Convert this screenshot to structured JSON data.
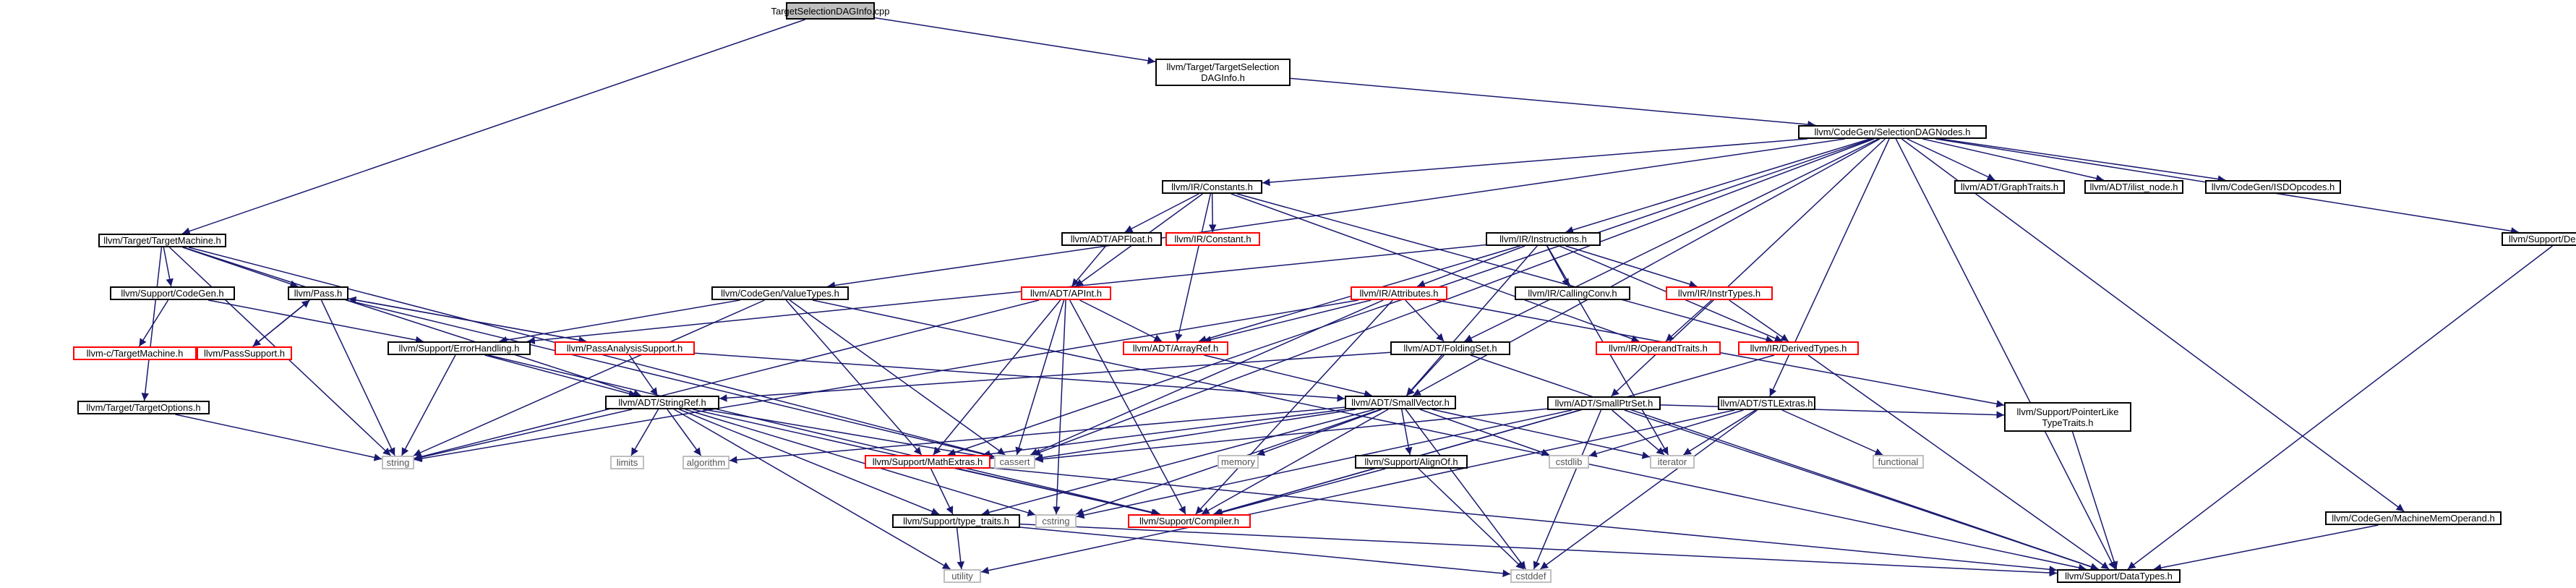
{
  "nodes": [
    {
      "id": "root",
      "label": "TargetSelectionDAGInfo.cpp",
      "style": "root"
    },
    {
      "id": "tsdi",
      "label": "llvm/Target/TargetSelection\nDAGInfo.h",
      "style": "black"
    },
    {
      "id": "sdn",
      "label": "llvm/CodeGen/SelectionDAGNodes.h",
      "style": "black"
    },
    {
      "id": "tm",
      "label": "llvm/Target/TargetMachine.h",
      "style": "black"
    },
    {
      "id": "constants",
      "label": "llvm/IR/Constants.h",
      "style": "black"
    },
    {
      "id": "graphtraits",
      "label": "llvm/ADT/GraphTraits.h",
      "style": "black"
    },
    {
      "id": "ilist",
      "label": "llvm/ADT/ilist_node.h",
      "style": "black"
    },
    {
      "id": "isdop",
      "label": "llvm/CodeGen/ISDOpcodes.h",
      "style": "black"
    },
    {
      "id": "debugloc",
      "label": "llvm/Support/DebugLoc.h",
      "style": "black"
    },
    {
      "id": "apfloat",
      "label": "llvm/ADT/APFloat.h",
      "style": "black"
    },
    {
      "id": "constant",
      "label": "llvm/IR/Constant.h",
      "style": "red"
    },
    {
      "id": "instructions",
      "label": "llvm/IR/Instructions.h",
      "style": "black"
    },
    {
      "id": "pass",
      "label": "llvm/Pass.h",
      "style": "black"
    },
    {
      "id": "valuetypes",
      "label": "llvm/CodeGen/ValueTypes.h",
      "style": "black"
    },
    {
      "id": "apint",
      "label": "llvm/ADT/APInt.h",
      "style": "red"
    },
    {
      "id": "attributes",
      "label": "llvm/IR/Attributes.h",
      "style": "red"
    },
    {
      "id": "callingconv",
      "label": "llvm/IR/CallingConv.h",
      "style": "black"
    },
    {
      "id": "instrtypes",
      "label": "llvm/IR/InstrTypes.h",
      "style": "red"
    },
    {
      "id": "supportcodegen",
      "label": "llvm/Support/CodeGen.h",
      "style": "black"
    },
    {
      "id": "passsupport",
      "label": "llvm/PassSupport.h",
      "style": "red"
    },
    {
      "id": "errorhandling",
      "label": "llvm/Support/ErrorHandling.h",
      "style": "black"
    },
    {
      "id": "passanalysis",
      "label": "llvm/PassAnalysisSupport.h",
      "style": "red"
    },
    {
      "id": "arrayref",
      "label": "llvm/ADT/ArrayRef.h",
      "style": "red"
    },
    {
      "id": "foldingset",
      "label": "llvm/ADT/FoldingSet.h",
      "style": "black"
    },
    {
      "id": "operandtraits",
      "label": "llvm/IR/OperandTraits.h",
      "style": "red"
    },
    {
      "id": "derivedtypes",
      "label": "llvm/IR/DerivedTypes.h",
      "style": "red"
    },
    {
      "id": "ctm",
      "label": "llvm-c/TargetMachine.h",
      "style": "red"
    },
    {
      "id": "targetoptions",
      "label": "llvm/Target/TargetOptions.h",
      "style": "black"
    },
    {
      "id": "stringref",
      "label": "llvm/ADT/StringRef.h",
      "style": "black"
    },
    {
      "id": "smallvector",
      "label": "llvm/ADT/SmallVector.h",
      "style": "black"
    },
    {
      "id": "smallptrset",
      "label": "llvm/ADT/SmallPtrSet.h",
      "style": "black"
    },
    {
      "id": "stlextras",
      "label": "llvm/ADT/STLExtras.h",
      "style": "black"
    },
    {
      "id": "pointerlike",
      "label": "llvm/Support/PointerLike\nTypeTraits.h",
      "style": "black"
    },
    {
      "id": "string",
      "label": "string",
      "style": "gray"
    },
    {
      "id": "limits",
      "label": "limits",
      "style": "gray"
    },
    {
      "id": "algorithm",
      "label": "algorithm",
      "style": "gray"
    },
    {
      "id": "cassert",
      "label": "cassert",
      "style": "gray"
    },
    {
      "id": "mathextras",
      "label": "llvm/Support/MathExtras.h",
      "style": "red"
    },
    {
      "id": "memory",
      "label": "memory",
      "style": "gray"
    },
    {
      "id": "alignof",
      "label": "llvm/Support/AlignOf.h",
      "style": "black"
    },
    {
      "id": "cstdlib",
      "label": "cstdlib",
      "style": "gray"
    },
    {
      "id": "iterator",
      "label": "iterator",
      "style": "gray"
    },
    {
      "id": "functional",
      "label": "functional",
      "style": "gray"
    },
    {
      "id": "typetraits",
      "label": "llvm/Support/type_traits.h",
      "style": "black"
    },
    {
      "id": "cstring",
      "label": "cstring",
      "style": "gray"
    },
    {
      "id": "compiler",
      "label": "llvm/Support/Compiler.h",
      "style": "red"
    },
    {
      "id": "machinememoperand",
      "label": "llvm/CodeGen/MachineMemOperand.h",
      "style": "black"
    },
    {
      "id": "utility",
      "label": "utility",
      "style": "gray"
    },
    {
      "id": "cstddef",
      "label": "cstddef",
      "style": "gray"
    },
    {
      "id": "datatypes",
      "label": "llvm/Support/DataTypes.h",
      "style": "black"
    }
  ],
  "edges": [
    [
      "root",
      "tsdi"
    ],
    [
      "root",
      "tm"
    ],
    [
      "tsdi",
      "sdn"
    ],
    [
      "sdn",
      "constants"
    ],
    [
      "sdn",
      "graphtraits"
    ],
    [
      "sdn",
      "ilist"
    ],
    [
      "sdn",
      "isdop"
    ],
    [
      "sdn",
      "debugloc"
    ],
    [
      "sdn",
      "valuetypes"
    ],
    [
      "sdn",
      "instructions"
    ],
    [
      "sdn",
      "foldingset"
    ],
    [
      "sdn",
      "smallvector"
    ],
    [
      "sdn",
      "smallptrset"
    ],
    [
      "sdn",
      "stlextras"
    ],
    [
      "sdn",
      "machinememoperand"
    ],
    [
      "sdn",
      "datatypes"
    ],
    [
      "sdn",
      "mathextras"
    ],
    [
      "sdn",
      "cassert"
    ],
    [
      "tm",
      "pass"
    ],
    [
      "tm",
      "supportcodegen"
    ],
    [
      "tm",
      "targetoptions"
    ],
    [
      "tm",
      "stringref"
    ],
    [
      "tm",
      "string"
    ],
    [
      "tm",
      "cassert"
    ],
    [
      "constants",
      "apfloat"
    ],
    [
      "constants",
      "constant"
    ],
    [
      "constants",
      "apint"
    ],
    [
      "constants",
      "arrayref"
    ],
    [
      "constants",
      "operandtraits"
    ],
    [
      "constants",
      "derivedtypes"
    ],
    [
      "apfloat",
      "apint"
    ],
    [
      "instructions",
      "attributes"
    ],
    [
      "instructions",
      "callingconv"
    ],
    [
      "instructions",
      "instrtypes"
    ],
    [
      "instructions",
      "arrayref"
    ],
    [
      "instructions",
      "errorhandling"
    ],
    [
      "instructions",
      "derivedtypes"
    ],
    [
      "instructions",
      "smallvector"
    ],
    [
      "instructions",
      "iterator"
    ],
    [
      "pass",
      "passsupport"
    ],
    [
      "pass",
      "passanalysis"
    ],
    [
      "pass",
      "string"
    ],
    [
      "pass",
      "cassert"
    ],
    [
      "passsupport",
      "pass"
    ],
    [
      "passanalysis",
      "pass"
    ],
    [
      "passanalysis",
      "smallvector"
    ],
    [
      "passanalysis",
      "stringref"
    ],
    [
      "valuetypes",
      "errorhandling"
    ],
    [
      "valuetypes",
      "mathextras"
    ],
    [
      "valuetypes",
      "cassert"
    ],
    [
      "valuetypes",
      "datatypes"
    ],
    [
      "valuetypes",
      "string"
    ],
    [
      "apint",
      "arrayref"
    ],
    [
      "apint",
      "mathextras"
    ],
    [
      "apint",
      "compiler"
    ],
    [
      "apint",
      "cassert"
    ],
    [
      "apint",
      "string"
    ],
    [
      "apint",
      "cstring"
    ],
    [
      "attributes",
      "arrayref"
    ],
    [
      "attributes",
      "foldingset"
    ],
    [
      "attributes",
      "pointerlike"
    ],
    [
      "attributes",
      "compiler"
    ],
    [
      "attributes",
      "string"
    ],
    [
      "attributes",
      "cassert"
    ],
    [
      "instrtypes",
      "operandtraits"
    ],
    [
      "instrtypes",
      "derivedtypes"
    ],
    [
      "supportcodegen",
      "ctm"
    ],
    [
      "supportcodegen",
      "errorhandling"
    ],
    [
      "errorhandling",
      "stringref"
    ],
    [
      "errorhandling",
      "compiler"
    ],
    [
      "errorhandling",
      "string"
    ],
    [
      "arrayref",
      "smallvector"
    ],
    [
      "foldingset",
      "smallvector"
    ],
    [
      "foldingset",
      "stringref"
    ],
    [
      "foldingset",
      "datatypes"
    ],
    [
      "derivedtypes",
      "compiler"
    ],
    [
      "derivedtypes",
      "datatypes"
    ],
    [
      "targetoptions",
      "string"
    ],
    [
      "stringref",
      "cassert"
    ],
    [
      "stringref",
      "compiler"
    ],
    [
      "stringref",
      "string"
    ],
    [
      "stringref",
      "limits"
    ],
    [
      "stringref",
      "algorithm"
    ],
    [
      "stringref",
      "cstring"
    ],
    [
      "stringref",
      "typetraits"
    ],
    [
      "stringref",
      "utility"
    ],
    [
      "smallvector",
      "algorithm"
    ],
    [
      "smallvector",
      "cassert"
    ],
    [
      "smallvector",
      "mathextras"
    ],
    [
      "smallvector",
      "memory"
    ],
    [
      "smallvector",
      "alignof"
    ],
    [
      "smallvector",
      "cstdlib"
    ],
    [
      "smallvector",
      "iterator"
    ],
    [
      "smallvector",
      "typetraits"
    ],
    [
      "smallvector",
      "compiler"
    ],
    [
      "smallvector",
      "cstring"
    ],
    [
      "smallvector",
      "cstddef"
    ],
    [
      "smallptrset",
      "cassert"
    ],
    [
      "smallptrset",
      "iterator"
    ],
    [
      "smallptrset",
      "pointerlike"
    ],
    [
      "smallptrset",
      "compiler"
    ],
    [
      "smallptrset",
      "datatypes"
    ],
    [
      "smallptrset",
      "cstring"
    ],
    [
      "smallptrset",
      "cstddef"
    ],
    [
      "stlextras",
      "cstdlib"
    ],
    [
      "stlextras",
      "functional"
    ],
    [
      "stlextras",
      "iterator"
    ],
    [
      "stlextras",
      "utility"
    ],
    [
      "stlextras",
      "cstddef"
    ],
    [
      "pointerlike",
      "datatypes"
    ],
    [
      "mathextras",
      "typetraits"
    ],
    [
      "mathextras",
      "compiler"
    ],
    [
      "mathextras",
      "datatypes"
    ],
    [
      "alignof",
      "compiler"
    ],
    [
      "alignof",
      "cstddef"
    ],
    [
      "typetraits",
      "utility"
    ],
    [
      "typetraits",
      "cstddef"
    ],
    [
      "typetraits",
      "datatypes"
    ],
    [
      "machinememoperand",
      "datatypes"
    ],
    [
      "debugloc",
      "datatypes"
    ]
  ]
}
